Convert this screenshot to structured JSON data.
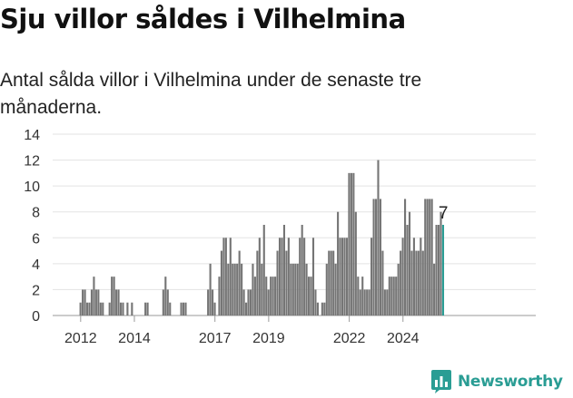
{
  "title": "Sju villor såldes i Vilhelmina",
  "subtitle": "Antal sålda villor i Vilhelmina under de senaste tre månaderna.",
  "brand": {
    "name": "Newsworthy",
    "color": "#2a9d94"
  },
  "chart_data": {
    "type": "bar",
    "x_start": "2011-01",
    "x_unit": "month",
    "ylim": [
      0,
      14
    ],
    "yticks": [
      0,
      2,
      4,
      6,
      8,
      10,
      12,
      14
    ],
    "xticks": [
      "2012",
      "2014",
      "2017",
      "2019",
      "2022",
      "2024"
    ],
    "grid": true,
    "bar_color": "#757575",
    "highlight_color": "#2a9d94",
    "highlight_label": "7",
    "values": [
      0,
      0,
      0,
      0,
      0,
      0,
      0,
      0,
      0,
      0,
      0,
      0,
      1,
      2,
      2,
      1,
      1,
      2,
      3,
      2,
      2,
      1,
      1,
      0,
      0,
      1,
      3,
      3,
      2,
      2,
      1,
      1,
      0,
      1,
      0,
      1,
      0,
      0,
      0,
      0,
      0,
      1,
      1,
      0,
      0,
      0,
      0,
      0,
      0,
      2,
      3,
      2,
      1,
      0,
      0,
      0,
      0,
      1,
      1,
      1,
      0,
      0,
      0,
      0,
      0,
      0,
      0,
      0,
      0,
      2,
      4,
      2,
      1,
      0,
      3,
      5,
      6,
      6,
      4,
      6,
      4,
      4,
      4,
      5,
      4,
      2,
      1,
      2,
      2,
      4,
      3,
      5,
      6,
      4,
      7,
      3,
      2,
      3,
      3,
      3,
      5,
      6,
      6,
      7,
      5,
      6,
      4,
      4,
      4,
      4,
      6,
      7,
      6,
      4,
      3,
      3,
      6,
      2,
      1,
      0,
      1,
      1,
      4,
      5,
      5,
      5,
      4,
      8,
      6,
      6,
      6,
      6,
      11,
      11,
      11,
      8,
      3,
      2,
      3,
      2,
      2,
      2,
      6,
      9,
      9,
      12,
      9,
      5,
      2,
      2,
      3,
      3,
      3,
      3,
      4,
      5,
      6,
      9,
      7,
      8,
      5,
      6,
      5,
      5,
      6,
      5,
      9,
      9,
      9,
      9,
      4,
      7,
      7,
      8,
      7
    ]
  }
}
